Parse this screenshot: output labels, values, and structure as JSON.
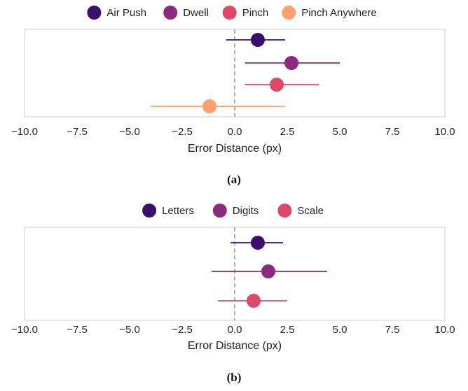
{
  "chart_data": [
    {
      "type": "scatter",
      "subtype": "dot-with-error-bars",
      "caption": "(a)",
      "xlabel": "Error Distance (px)",
      "ylabel": "",
      "xlim": [
        -10,
        10
      ],
      "xticks": [
        "−10.0",
        "−7.5",
        "−5.0",
        "−2.5",
        "0.0",
        "2.5",
        "5.0",
        "7.5",
        "10.0"
      ],
      "xtick_values": [
        -10,
        -7.5,
        -5,
        -2.5,
        0,
        2.5,
        5,
        7.5,
        10
      ],
      "reference_line_x": 0,
      "grid": false,
      "legend_position": "top-center",
      "series": [
        {
          "name": "Air Push",
          "value": 1.1,
          "ci": [
            -0.4,
            2.4
          ],
          "color": "#3b0f70"
        },
        {
          "name": "Dwell",
          "value": 2.7,
          "ci": [
            0.5,
            5.0
          ],
          "color": "#8c2981"
        },
        {
          "name": "Pinch",
          "value": 2.0,
          "ci": [
            0.5,
            4.0
          ],
          "color": "#de4968"
        },
        {
          "name": "Pinch Anywhere",
          "value": -1.2,
          "ci": [
            -4.0,
            2.4
          ],
          "color": "#fe9f6d"
        }
      ]
    },
    {
      "type": "scatter",
      "subtype": "dot-with-error-bars",
      "caption": "(b)",
      "xlabel": "Error Distance (px)",
      "ylabel": "",
      "xlim": [
        -10,
        10
      ],
      "xticks": [
        "−10.0",
        "−7.5",
        "−5.0",
        "−2.5",
        "0.0",
        "2.5",
        "5.0",
        "7.5",
        "10.0"
      ],
      "xtick_values": [
        -10,
        -7.5,
        -5,
        -2.5,
        0,
        2.5,
        5,
        7.5,
        10
      ],
      "reference_line_x": 0,
      "grid": false,
      "legend_position": "top-center",
      "series": [
        {
          "name": "Letters",
          "value": 1.1,
          "ci": [
            -0.2,
            2.3
          ],
          "color": "#3b0f70"
        },
        {
          "name": "Digits",
          "value": 1.6,
          "ci": [
            -1.1,
            4.4
          ],
          "color": "#8c2981"
        },
        {
          "name": "Scale",
          "value": 0.9,
          "ci": [
            -0.8,
            2.5
          ],
          "color": "#de4968"
        }
      ]
    }
  ]
}
